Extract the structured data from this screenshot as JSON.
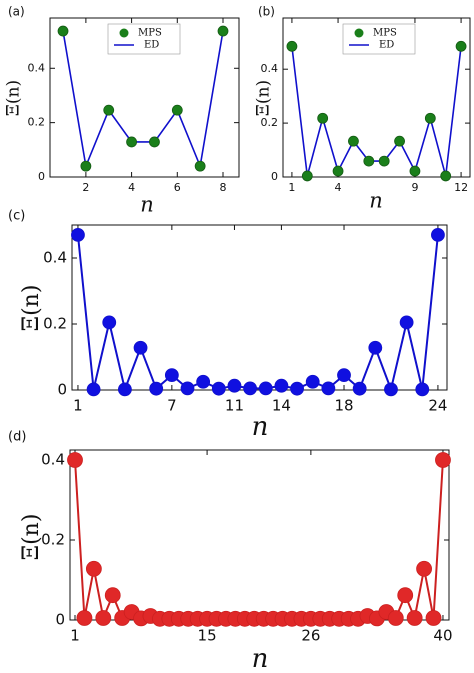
{
  "chart_data": [
    {
      "type": "line",
      "panel_label": "(a)",
      "x_label": "n",
      "y_label": "Ξ(n)",
      "x": [
        1,
        2,
        3,
        4,
        5,
        6,
        7,
        8
      ],
      "series": [
        {
          "name": "MPS",
          "color": "#1a7f1a",
          "values": [
            0.537,
            0.04,
            0.246,
            0.129,
            0.129,
            0.246,
            0.04,
            0.537
          ]
        },
        {
          "name": "ED",
          "color": "#1010cc",
          "values": [
            0.537,
            0.04,
            0.246,
            0.129,
            0.129,
            0.246,
            0.04,
            0.537
          ]
        }
      ],
      "xlim": [
        0.43,
        8.7
      ],
      "ylim": [
        0,
        0.585
      ],
      "xticks": [
        2,
        4,
        6,
        8
      ],
      "yticks": [
        0,
        0.2,
        0.4
      ]
    },
    {
      "type": "line",
      "panel_label": "(b)",
      "x_label": "n",
      "y_label": "Ξ(n)",
      "x": [
        1,
        2,
        3,
        4,
        5,
        6,
        7,
        8,
        9,
        10,
        11,
        12
      ],
      "series": [
        {
          "name": "MPS",
          "color": "#1a7f1a",
          "values": [
            0.485,
            0.004,
            0.218,
            0.022,
            0.133,
            0.059,
            0.059,
            0.133,
            0.022,
            0.218,
            0.004,
            0.485
          ]
        },
        {
          "name": "ED",
          "color": "#1010cc",
          "values": [
            0.485,
            0.004,
            0.218,
            0.022,
            0.133,
            0.059,
            0.059,
            0.133,
            0.022,
            0.218,
            0.004,
            0.485
          ]
        }
      ],
      "xlim": [
        0.42,
        12.58
      ],
      "ylim": [
        0,
        0.59
      ],
      "xticks": [
        1,
        4,
        9,
        12
      ],
      "yticks": [
        0,
        0.2,
        0.4
      ]
    },
    {
      "type": "line",
      "panel_label": "(c)",
      "x_label": "n",
      "y_label": "Ξ(n)",
      "x": [
        1,
        2,
        3,
        4,
        5,
        6,
        7,
        8,
        9,
        10,
        11,
        12,
        13,
        14,
        15,
        16,
        17,
        18,
        19,
        20,
        21,
        22,
        23,
        24
      ],
      "values": [
        0.47,
        0.002,
        0.205,
        0.002,
        0.128,
        0.004,
        0.045,
        0.005,
        0.025,
        0.004,
        0.013,
        0.005,
        0.005,
        0.013,
        0.004,
        0.025,
        0.005,
        0.045,
        0.004,
        0.128,
        0.002,
        0.205,
        0.002,
        0.47
      ],
      "color": "#1010e0",
      "line_color": "#1010cc",
      "xlim": [
        0.62,
        24.58
      ],
      "ylim": [
        0,
        0.5
      ],
      "xticks": [
        1,
        7,
        11,
        14,
        18,
        24
      ],
      "yticks": [
        0,
        0.2,
        0.4
      ]
    },
    {
      "type": "line",
      "panel_label": "(d)",
      "x_label": "n",
      "y_label": "Ξ(n)",
      "x": [
        1,
        2,
        3,
        4,
        5,
        6,
        7,
        8,
        9,
        10,
        11,
        12,
        13,
        14,
        15,
        16,
        17,
        18,
        19,
        20,
        21,
        22,
        23,
        24,
        25,
        26,
        27,
        28,
        29,
        30,
        31,
        32,
        33,
        34,
        35,
        36,
        37,
        38,
        39,
        40
      ],
      "values": [
        0.4,
        0.005,
        0.128,
        0.005,
        0.062,
        0.005,
        0.02,
        0.004,
        0.01,
        0.003,
        0.003,
        0.003,
        0.003,
        0.003,
        0.003,
        0.003,
        0.003,
        0.003,
        0.003,
        0.003,
        0.003,
        0.003,
        0.003,
        0.003,
        0.003,
        0.003,
        0.003,
        0.003,
        0.003,
        0.003,
        0.003,
        0.01,
        0.004,
        0.02,
        0.005,
        0.062,
        0.005,
        0.128,
        0.005,
        0.4
      ],
      "color": "#e02828",
      "line_color": "#cc2020",
      "xlim": [
        0.47,
        40.64
      ],
      "ylim": [
        0,
        0.425
      ],
      "xticks": [
        1,
        15,
        26,
        40
      ],
      "yticks": [
        0,
        0.2,
        0.4
      ]
    }
  ]
}
